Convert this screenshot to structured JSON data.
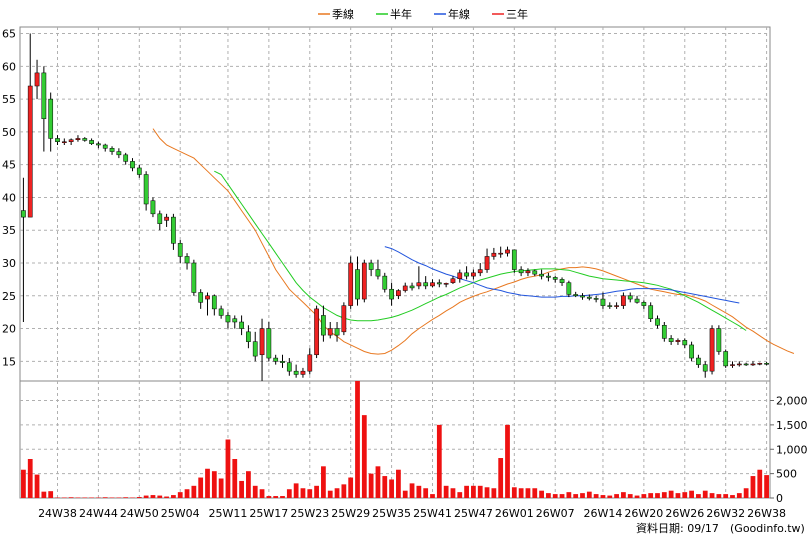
{
  "chart_data": {
    "type": "candlestick",
    "legend": {
      "placement": "top-center",
      "entries": [
        {
          "label": "季線",
          "color": "#e87820"
        },
        {
          "label": "半年",
          "color": "#22cc22"
        },
        {
          "label": "年線",
          "color": "#2255dd"
        },
        {
          "label": "三年",
          "color": "#ee2222"
        }
      ]
    },
    "price_axis": {
      "ticks": [
        15,
        20,
        25,
        30,
        35,
        40,
        45,
        50,
        55,
        60,
        65
      ],
      "range": [
        12,
        66
      ],
      "side": "left"
    },
    "volume_axis": {
      "ticks": [
        "0",
        "500",
        "1,000",
        "1,500",
        "2,000"
      ],
      "values": [
        0,
        500,
        1000,
        1500,
        2000
      ],
      "range": [
        0,
        2400
      ],
      "side": "right"
    },
    "x_ticks": [
      {
        "label": "24W38",
        "i": 5
      },
      {
        "label": "24W44",
        "i": 11
      },
      {
        "label": "24W50",
        "i": 17
      },
      {
        "label": "25W04",
        "i": 23
      },
      {
        "label": "25W11",
        "i": 30
      },
      {
        "label": "25W17",
        "i": 36
      },
      {
        "label": "25W23",
        "i": 42
      },
      {
        "label": "25W29",
        "i": 48
      },
      {
        "label": "25W35",
        "i": 54
      },
      {
        "label": "25W41",
        "i": 60
      },
      {
        "label": "25W47",
        "i": 66
      },
      {
        "label": "26W01",
        "i": 72
      },
      {
        "label": "26W07",
        "i": 78
      },
      {
        "label": "26W14",
        "i": 85
      },
      {
        "label": "26W20",
        "i": 91
      },
      {
        "label": "26W26",
        "i": 97
      },
      {
        "label": "26W32",
        "i": 103
      },
      {
        "label": "26W38",
        "i": 109
      }
    ],
    "n_weeks": 110,
    "candles": [
      [
        38,
        43,
        21,
        37
      ],
      [
        37,
        65,
        37,
        57
      ],
      [
        57,
        61,
        55,
        59
      ],
      [
        59,
        60,
        47,
        52
      ],
      [
        55,
        56,
        47,
        49
      ],
      [
        49,
        49.5,
        48,
        48.5
      ],
      [
        48.5,
        49,
        48,
        48.5
      ],
      [
        48.5,
        49,
        48,
        48.8
      ],
      [
        48.8,
        49.5,
        48.5,
        49
      ],
      [
        49,
        49.2,
        48.5,
        48.7
      ],
      [
        48.7,
        49,
        48,
        48.2
      ],
      [
        48.2,
        48.5,
        47.5,
        48
      ],
      [
        48,
        48.2,
        47,
        47.5
      ],
      [
        47.5,
        47.8,
        46.5,
        47
      ],
      [
        47,
        47.5,
        46,
        46.5
      ],
      [
        46.5,
        46.8,
        45,
        45.5
      ],
      [
        45.5,
        46,
        44,
        44.5
      ],
      [
        44.5,
        45,
        43,
        43.5
      ],
      [
        43.5,
        44,
        38,
        39
      ],
      [
        39.5,
        40,
        37,
        37.5
      ],
      [
        37.5,
        38,
        35,
        36
      ],
      [
        36.5,
        37.5,
        35.5,
        37
      ],
      [
        37,
        37.5,
        32,
        33
      ],
      [
        33,
        33.5,
        30,
        31
      ],
      [
        31,
        31.5,
        29,
        30
      ],
      [
        30,
        30.5,
        25,
        25.5
      ],
      [
        25.5,
        26,
        23,
        24
      ],
      [
        24.5,
        25.5,
        22,
        25
      ],
      [
        25,
        25.2,
        22,
        23
      ],
      [
        23,
        23.5,
        21.5,
        22
      ],
      [
        22,
        22.5,
        20,
        21
      ],
      [
        21.5,
        22,
        20,
        21
      ],
      [
        21,
        22,
        19,
        20
      ],
      [
        19.5,
        20.5,
        17,
        18
      ],
      [
        18,
        19.5,
        15,
        15.8
      ],
      [
        16,
        21.5,
        12,
        20
      ],
      [
        20,
        21,
        15,
        15.5
      ],
      [
        15.5,
        16,
        14.5,
        15
      ],
      [
        15,
        16,
        14,
        14.8
      ],
      [
        14.8,
        15.5,
        12.8,
        13.5
      ],
      [
        13.5,
        14.5,
        12.5,
        13
      ],
      [
        13,
        14,
        12.5,
        13.5
      ],
      [
        13.5,
        17,
        13,
        16
      ],
      [
        16,
        23.5,
        15.5,
        23
      ],
      [
        22,
        23.5,
        18,
        19
      ],
      [
        19,
        21,
        18.5,
        20
      ],
      [
        20,
        21,
        18,
        19
      ],
      [
        19.5,
        24,
        19,
        23.5
      ],
      [
        23.5,
        31,
        23,
        30
      ],
      [
        29,
        31,
        23.5,
        24.5
      ],
      [
        24.5,
        30.5,
        24,
        30
      ],
      [
        30,
        30.5,
        28,
        29
      ],
      [
        29,
        30.5,
        27.5,
        28
      ],
      [
        28,
        28.5,
        25.5,
        26
      ],
      [
        26,
        27,
        23.5,
        24.5
      ],
      [
        25,
        26,
        24.5,
        25.8
      ],
      [
        25.8,
        27,
        25.5,
        26.5
      ],
      [
        26.5,
        27,
        25.8,
        26.2
      ],
      [
        26.5,
        29.5,
        26,
        27
      ],
      [
        27,
        28,
        26,
        26.5
      ],
      [
        26.5,
        27.5,
        26.3,
        27
      ],
      [
        27,
        27.5,
        26.3,
        26.8
      ],
      [
        26.8,
        27,
        26.3,
        26.9
      ],
      [
        27,
        28,
        26.8,
        27.6
      ],
      [
        27.6,
        29,
        27,
        28.5
      ],
      [
        28.5,
        29.5,
        27.5,
        28
      ],
      [
        28,
        29,
        27.5,
        28.5
      ],
      [
        28.5,
        30,
        28,
        29
      ],
      [
        29,
        32.2,
        28.5,
        31
      ],
      [
        31,
        32.3,
        30.5,
        31.5
      ],
      [
        31.5,
        32.5,
        30.8,
        31.5
      ],
      [
        31.5,
        32.5,
        31,
        32
      ],
      [
        32,
        32,
        28.5,
        29
      ],
      [
        29,
        29.5,
        28,
        28.5
      ],
      [
        28.5,
        29.2,
        28,
        28.8
      ],
      [
        28.8,
        29,
        28,
        28.3
      ],
      [
        28.3,
        29,
        27.5,
        28
      ],
      [
        28,
        28.5,
        27.2,
        27.8
      ],
      [
        27.8,
        28,
        27,
        27.5
      ],
      [
        27.5,
        27.8,
        26.5,
        27
      ],
      [
        27,
        27.3,
        24.8,
        25.2
      ],
      [
        25.2,
        25.6,
        24.8,
        25
      ],
      [
        25,
        25.4,
        24.4,
        24.8
      ],
      [
        24.8,
        25.2,
        24.3,
        24.6
      ],
      [
        24.6,
        25,
        24,
        24.5
      ],
      [
        24.5,
        25.5,
        23,
        23.5
      ],
      [
        23.5,
        24,
        23,
        23.4
      ],
      [
        23.4,
        24,
        23,
        23.5
      ],
      [
        23.5,
        25.5,
        23,
        25
      ],
      [
        25,
        25.5,
        24,
        24.5
      ],
      [
        24.5,
        25,
        23.8,
        24
      ],
      [
        24,
        24.3,
        23,
        23.5
      ],
      [
        23.5,
        24,
        21,
        21.5
      ],
      [
        21.5,
        22,
        20,
        20.5
      ],
      [
        20.5,
        21,
        18,
        18.5
      ],
      [
        18.5,
        19,
        17.5,
        18
      ],
      [
        18,
        18.5,
        17.5,
        18.2
      ],
      [
        18.2,
        18.5,
        17,
        17.5
      ],
      [
        17.5,
        18,
        15,
        15.5
      ],
      [
        15.5,
        16,
        14,
        14.5
      ],
      [
        14.5,
        15,
        12.5,
        13.5
      ],
      [
        13.5,
        20.5,
        13,
        20
      ],
      [
        20,
        20.5,
        16,
        16.5
      ],
      [
        16.5,
        16.8,
        14,
        14.3
      ],
      [
        14.5,
        15,
        14,
        14.5
      ],
      [
        14.5,
        15,
        14.2,
        14.6
      ],
      [
        14.6,
        14.8,
        14.3,
        14.5
      ],
      [
        14.5,
        15,
        14.3,
        14.6
      ],
      [
        14.6,
        14.8,
        14.4,
        14.7
      ],
      [
        14.7,
        14.9,
        14.4,
        14.6
      ]
    ],
    "volume": [
      580,
      800,
      480,
      130,
      140,
      10,
      10,
      15,
      10,
      10,
      10,
      10,
      15,
      10,
      10,
      15,
      10,
      20,
      50,
      60,
      50,
      30,
      60,
      120,
      180,
      250,
      420,
      600,
      550,
      400,
      1200,
      800,
      350,
      550,
      250,
      180,
      40,
      40,
      40,
      180,
      300,
      200,
      180,
      250,
      650,
      150,
      200,
      280,
      420,
      2400,
      1700,
      500,
      650,
      450,
      380,
      580,
      150,
      300,
      250,
      200,
      80,
      1500,
      250,
      200,
      120,
      250,
      250,
      250,
      220,
      200,
      820,
      1500,
      220,
      200,
      200,
      200,
      150,
      100,
      80,
      80,
      120,
      80,
      100,
      130,
      80,
      60,
      50,
      80,
      120,
      80,
      50,
      80,
      100,
      100,
      120,
      150,
      100,
      120,
      150,
      80,
      150,
      100,
      80,
      80,
      60,
      100,
      200,
      450,
      580,
      470,
      150,
      40,
      40,
      40,
      40,
      40
    ],
    "lines": {
      "季線": {
        "start": 19,
        "values": [
          50.5,
          49,
          48,
          47.5,
          47,
          46.5,
          46,
          45,
          44,
          43,
          42,
          41,
          39.5,
          38,
          36.5,
          35,
          33,
          31,
          29,
          27.5,
          26,
          25,
          24,
          23,
          22,
          20.5,
          19.5,
          18.8,
          18,
          17.5,
          17,
          16.5,
          16.2,
          16.1,
          16.2,
          16.7,
          17.4,
          18.2,
          19.2,
          20,
          20.7,
          21.4,
          22,
          22.7,
          23.3,
          24,
          24.5,
          24.9,
          25.3,
          25.6,
          26,
          26.4,
          26.8,
          27.1,
          27.5,
          27.8,
          28,
          28.2,
          28.6,
          28.9,
          29.1,
          29.3,
          29.3,
          29.4,
          29.3,
          29.1,
          28.8,
          28.4,
          28,
          27.6,
          27.2,
          26.8,
          26.4,
          26,
          25.8,
          25.6,
          25.4,
          25.2,
          25.2,
          24.9,
          24.6,
          24.2,
          23.6,
          23,
          22.4,
          21.8,
          21,
          20.2,
          19.6,
          18.9,
          18.2,
          17.6,
          17.1,
          16.6,
          16.2
        ]
      },
      "半年": {
        "start": 28,
        "values": [
          44,
          43.5,
          42,
          40.5,
          39,
          37.5,
          36,
          34.5,
          33,
          31.5,
          30,
          28.5,
          27,
          25.8,
          24.8,
          24,
          23.2,
          22.6,
          22,
          21.6,
          21.3,
          21.2,
          21.2,
          21.2,
          21.3,
          21.5,
          21.7,
          22,
          22.4,
          22.8,
          23.3,
          23.8,
          24.3,
          24.8,
          25.2,
          25.7,
          26.2,
          26.6,
          27,
          27.4,
          27.7,
          28,
          28.3,
          28.5,
          28.7,
          28.8,
          28.9,
          29,
          29.1,
          29.1,
          29.1,
          29,
          28.9,
          28.6,
          28.3,
          28,
          27.8,
          27.6,
          27.5,
          27.4,
          27.3,
          27.2,
          27.1,
          27,
          26.8,
          26.6,
          26.3,
          26,
          25.5,
          25,
          24.5,
          24,
          23.4,
          22.8,
          22.2,
          21.6,
          21,
          20.4,
          19.7
        ]
      },
      "年線": {
        "start": 53,
        "values": [
          32.5,
          32.2,
          31.7,
          31.1,
          30.5,
          30,
          29.6,
          29.1,
          28.7,
          28.3,
          28,
          27.6,
          27.3,
          27,
          26.6,
          26.2,
          26,
          25.8,
          25.5,
          25.3,
          25.1,
          25,
          24.9,
          24.8,
          24.8,
          24.8,
          24.9,
          24.9,
          25,
          25,
          25.1,
          25.2,
          25.3,
          25.5,
          25.7,
          25.8,
          26,
          26.1,
          26.1,
          26.1,
          26.1,
          26,
          25.9,
          25.7,
          25.5,
          25.3,
          25.1,
          24.9,
          24.7,
          24.5,
          24.3,
          24.1,
          23.9
        ]
      }
    }
  },
  "footer": {
    "date_label": "資料日期: 09/17",
    "source": "(Goodinfo.tw)"
  }
}
